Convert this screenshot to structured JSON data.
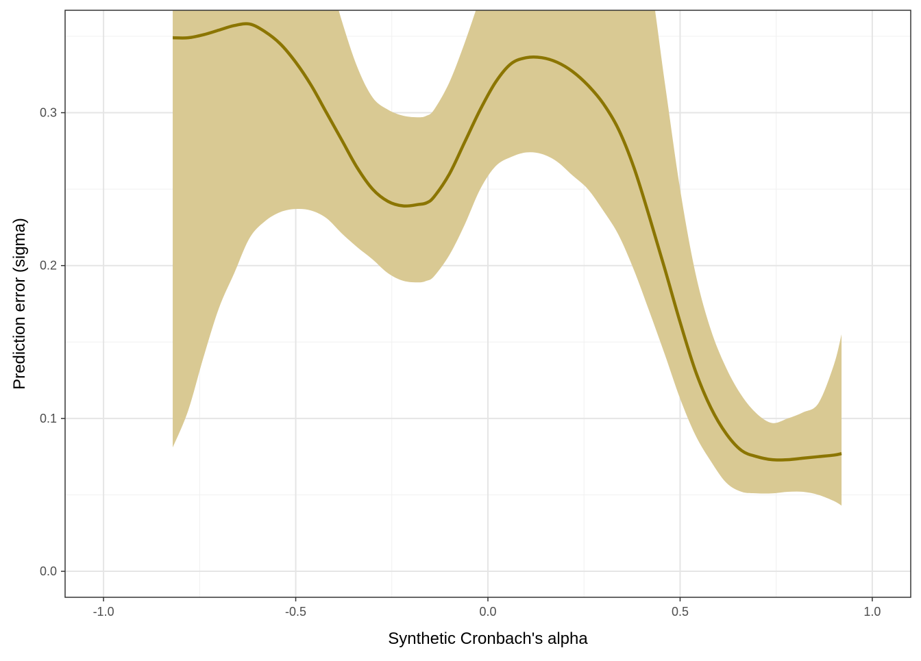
{
  "chart_data": {
    "type": "line",
    "title": "",
    "xlabel": "Synthetic Cronbach's alpha",
    "ylabel": "Prediction error (sigma)",
    "xlim": [
      -1.1,
      1.1
    ],
    "ylim": [
      -0.017,
      0.367
    ],
    "x_ticks": [
      -1.0,
      -0.5,
      0.0,
      0.5,
      1.0
    ],
    "x_tick_labels": [
      "-1.0",
      "-0.5",
      "0.0",
      "0.5",
      "1.0"
    ],
    "y_ticks": [
      0.0,
      0.1,
      0.2,
      0.3
    ],
    "y_tick_labels": [
      "0.0",
      "0.1",
      "0.2",
      "0.3"
    ],
    "grid": true,
    "legend": "none",
    "colors": {
      "line": "#8B7500",
      "ribbon": "#D9C993",
      "grid_major": "#E5E5E5",
      "grid_minor": "#F0F0F0",
      "panel_border": "#333333"
    },
    "series": [
      {
        "kind": "smooth-with-ci",
        "x": [
          -0.82,
          -0.78,
          -0.74,
          -0.7,
          -0.66,
          -0.62,
          -0.58,
          -0.54,
          -0.5,
          -0.46,
          -0.42,
          -0.38,
          -0.34,
          -0.3,
          -0.26,
          -0.22,
          -0.18,
          -0.16,
          -0.14,
          -0.1,
          -0.06,
          -0.02,
          0.02,
          0.06,
          0.1,
          0.14,
          0.18,
          0.22,
          0.26,
          0.3,
          0.34,
          0.38,
          0.42,
          0.46,
          0.5,
          0.54,
          0.58,
          0.62,
          0.66,
          0.7,
          0.74,
          0.78,
          0.82,
          0.86,
          0.9,
          0.92
        ],
        "y": [
          0.349,
          0.349,
          0.351,
          0.354,
          0.357,
          0.358,
          0.353,
          0.345,
          0.333,
          0.318,
          0.3,
          0.282,
          0.264,
          0.25,
          0.242,
          0.239,
          0.24,
          0.241,
          0.245,
          0.26,
          0.281,
          0.302,
          0.32,
          0.332,
          0.336,
          0.336,
          0.333,
          0.327,
          0.318,
          0.306,
          0.289,
          0.264,
          0.232,
          0.198,
          0.163,
          0.131,
          0.107,
          0.09,
          0.079,
          0.075,
          0.073,
          0.073,
          0.074,
          0.075,
          0.076,
          0.077
        ],
        "upper": [
          0.4,
          0.41,
          0.415,
          0.42,
          0.425,
          0.43,
          0.43,
          0.43,
          0.43,
          0.42,
          0.395,
          0.36,
          0.33,
          0.31,
          0.302,
          0.298,
          0.297,
          0.298,
          0.302,
          0.32,
          0.346,
          0.375,
          0.4,
          0.42,
          0.43,
          0.435,
          0.44,
          0.44,
          0.44,
          0.44,
          0.43,
          0.42,
          0.39,
          0.32,
          0.25,
          0.195,
          0.158,
          0.133,
          0.115,
          0.103,
          0.097,
          0.1,
          0.104,
          0.11,
          0.135,
          0.155
        ],
        "lower": [
          0.081,
          0.105,
          0.14,
          0.172,
          0.195,
          0.218,
          0.229,
          0.235,
          0.237,
          0.236,
          0.231,
          0.221,
          0.212,
          0.204,
          0.195,
          0.19,
          0.189,
          0.19,
          0.193,
          0.207,
          0.227,
          0.25,
          0.265,
          0.271,
          0.274,
          0.273,
          0.268,
          0.259,
          0.25,
          0.236,
          0.22,
          0.197,
          0.17,
          0.142,
          0.113,
          0.089,
          0.072,
          0.058,
          0.052,
          0.051,
          0.051,
          0.052,
          0.052,
          0.05,
          0.046,
          0.043
        ]
      }
    ]
  }
}
